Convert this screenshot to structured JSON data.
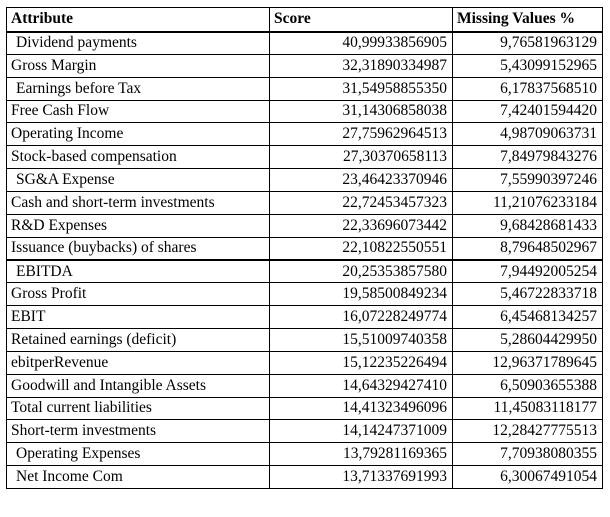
{
  "table": {
    "headers": [
      "Attribute",
      "Score",
      "Missing Values %"
    ],
    "rows": [
      {
        "attribute": "Dividend payments",
        "score": "40,99933856905",
        "missing": "9,76581963129"
      },
      {
        "attribute": "Gross Margin",
        "score": "32,31890334987",
        "missing": "5,43099152965"
      },
      {
        "attribute": "Earnings before Tax",
        "score": "31,54958855350",
        "missing": "6,17837568510"
      },
      {
        "attribute": "Free Cash Flow",
        "score": "31,14306858038",
        "missing": "7,42401594420"
      },
      {
        "attribute": "Operating Income",
        "score": "27,75962964513",
        "missing": "4,98709063731"
      },
      {
        "attribute": "Stock-based compensation",
        "score": "27,30370658113",
        "missing": "7,84979843276"
      },
      {
        "attribute": "SG&A Expense",
        "score": "23,46423370946",
        "missing": "7,55990397246"
      },
      {
        "attribute": "Cash and short-term investments",
        "score": "22,72453457323",
        "missing": "11,21076233184"
      },
      {
        "attribute": "R&D Expenses",
        "score": "22,33696073442",
        "missing": "9,68428681433"
      },
      {
        "attribute": "Issuance (buybacks) of shares",
        "score": "22,10822550551",
        "missing": "8,79648502967"
      },
      {
        "attribute": "EBITDA",
        "score": "20,25353857580",
        "missing": "7,94492005254"
      },
      {
        "attribute": "Gross Profit",
        "score": "19,58500849234",
        "missing": "5,46722833718"
      },
      {
        "attribute": "EBIT",
        "score": "16,07228249774",
        "missing": "6,45468134257"
      },
      {
        "attribute": "Retained earnings (deficit)",
        "score": "15,51009740358",
        "missing": "5,28604429950"
      },
      {
        "attribute": "ebitperRevenue",
        "score": "15,12235226494",
        "missing": "12,96371789645"
      },
      {
        "attribute": "Goodwill and Intangible Assets",
        "score": "14,64329427410",
        "missing": "6,50903655388"
      },
      {
        "attribute": "Total current liabilities",
        "score": "14,41323496096",
        "missing": "11,45083118177"
      },
      {
        "attribute": "Short-term investments",
        "score": "14,14247371009",
        "missing": "12,28427775513"
      },
      {
        "attribute": "Operating Expenses",
        "score": "13,79281169365",
        "missing": "7,70938080355"
      },
      {
        "attribute": "Net Income Com",
        "score": "13,71337691993",
        "missing": "6,30067491054"
      }
    ]
  }
}
